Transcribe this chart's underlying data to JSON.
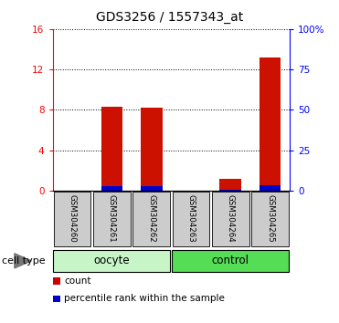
{
  "title": "GDS3256 / 1557343_at",
  "samples": [
    "GSM304260",
    "GSM304261",
    "GSM304262",
    "GSM304263",
    "GSM304264",
    "GSM304265"
  ],
  "red_values": [
    0.0,
    8.3,
    8.2,
    0.0,
    1.2,
    13.2
  ],
  "blue_values": [
    0.0,
    0.42,
    0.42,
    0.0,
    0.12,
    0.55
  ],
  "ylim_left": [
    0,
    16
  ],
  "ylim_right": [
    0,
    100
  ],
  "yticks_left": [
    0,
    4,
    8,
    12,
    16
  ],
  "yticks_right": [
    0,
    25,
    50,
    75,
    100
  ],
  "ytick_labels_left": [
    "0",
    "4",
    "8",
    "12",
    "16"
  ],
  "ytick_labels_right": [
    "0",
    "25",
    "50",
    "75",
    "100%"
  ],
  "groups": [
    {
      "label": "oocyte",
      "indices": [
        0,
        1,
        2
      ],
      "color": "#c8f5c8"
    },
    {
      "label": "control",
      "indices": [
        3,
        4,
        5
      ],
      "color": "#55dd55"
    }
  ],
  "cell_type_label": "cell type",
  "legend_items": [
    {
      "label": "count",
      "color": "#cc0000"
    },
    {
      "label": "percentile rank within the sample",
      "color": "#0000cc"
    }
  ],
  "bar_width": 0.55,
  "bar_color_red": "#cc1100",
  "bar_color_blue": "#0000cc",
  "tick_area_color": "#cccccc",
  "background_color": "#ffffff",
  "title_fontsize": 10,
  "tick_fontsize": 7.5,
  "legend_fontsize": 7.5,
  "sample_fontsize": 6.2,
  "group_fontsize": 8.5
}
